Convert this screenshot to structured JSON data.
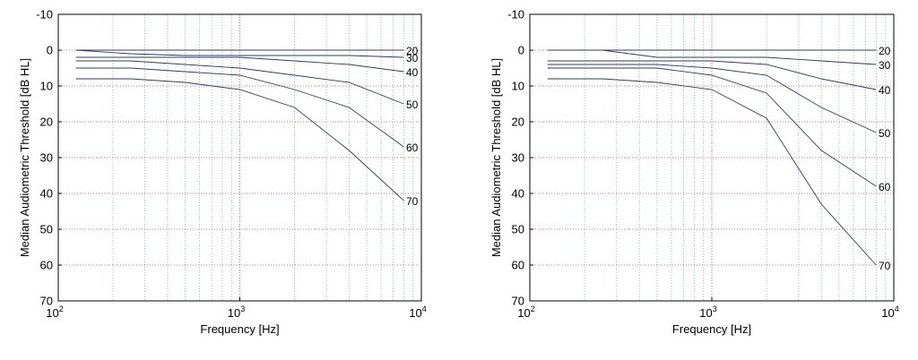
{
  "chart_data": [
    {
      "type": "line",
      "xlabel": "Frequency [Hz]",
      "ylabel": "Median Audiometric Threshold [dB HL]",
      "xscale": "log",
      "xlim": [
        100,
        10000
      ],
      "ylim": [
        -10,
        70
      ],
      "y_reversed": true,
      "grid": true,
      "xtick_bases": [
        "10",
        "10",
        "10"
      ],
      "xtick_exponents": [
        "2",
        "3",
        "4"
      ],
      "yticks": [
        "-10",
        "0",
        "10",
        "20",
        "30",
        "40",
        "50",
        "60",
        "70"
      ],
      "x": [
        125,
        250,
        500,
        1000,
        2000,
        4000,
        8000
      ],
      "series": [
        {
          "name": "20",
          "values": [
            0,
            0,
            0,
            0,
            0,
            0,
            0
          ]
        },
        {
          "name": "30",
          "values": [
            0,
            1,
            1.5,
            1.5,
            1.5,
            1.5,
            2
          ]
        },
        {
          "name": "40",
          "values": [
            2,
            2,
            2,
            2,
            3,
            4,
            6
          ]
        },
        {
          "name": "50",
          "values": [
            3,
            3,
            4,
            5,
            7,
            9,
            15
          ]
        },
        {
          "name": "60",
          "values": [
            5,
            5,
            6,
            7,
            11,
            16,
            27
          ]
        },
        {
          "name": "70",
          "values": [
            8,
            8,
            9,
            11,
            16,
            28,
            42
          ]
        }
      ]
    },
    {
      "type": "line",
      "xlabel": "Frequency [Hz]",
      "ylabel": "Median Audiometric Threshold [dB HL]",
      "xscale": "log",
      "xlim": [
        100,
        10000
      ],
      "ylim": [
        -10,
        70
      ],
      "y_reversed": true,
      "grid": true,
      "xtick_bases": [
        "10",
        "10",
        "10"
      ],
      "xtick_exponents": [
        "2",
        "3",
        "4"
      ],
      "yticks": [
        "-10",
        "0",
        "10",
        "20",
        "30",
        "40",
        "50",
        "60",
        "70"
      ],
      "x": [
        125,
        250,
        500,
        1000,
        2000,
        4000,
        8000
      ],
      "series": [
        {
          "name": "20",
          "values": [
            0,
            0,
            0,
            0,
            0,
            0,
            0
          ]
        },
        {
          "name": "30",
          "values": [
            0,
            0,
            2,
            2,
            2,
            3,
            4
          ]
        },
        {
          "name": "40",
          "values": [
            3,
            3,
            3,
            3,
            4,
            8,
            11
          ]
        },
        {
          "name": "50",
          "values": [
            4,
            4,
            4,
            5,
            7,
            16,
            23
          ]
        },
        {
          "name": "60",
          "values": [
            5,
            5,
            5,
            7,
            12,
            28,
            38
          ]
        },
        {
          "name": "70",
          "values": [
            8,
            8,
            9,
            11,
            19,
            43,
            60
          ]
        }
      ]
    }
  ]
}
